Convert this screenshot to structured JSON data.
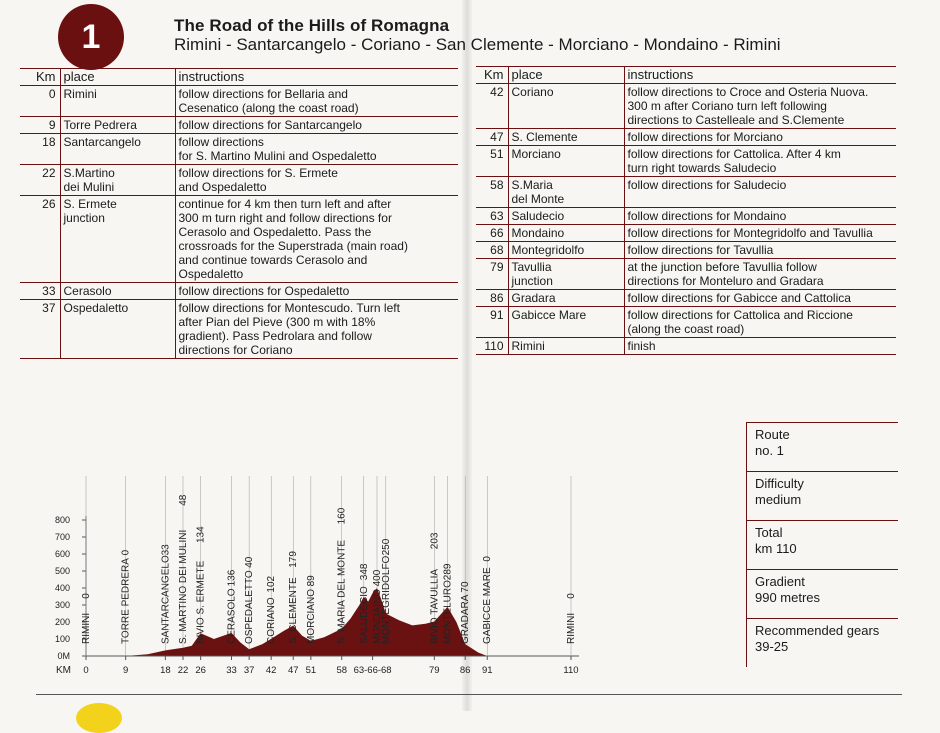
{
  "route_number": "1",
  "title": "The Road of the Hills of Romagna",
  "subtitle": "Rimini - Santarcangelo - Coriano - San Clemente - Morciano - Mondaino - Rimini",
  "headers": {
    "km": "Km",
    "place": "place",
    "instructions": "instructions"
  },
  "left_rows": [
    {
      "km": "0",
      "place": "Rimini",
      "instr": "follow directions for Bellaria and\nCesenatico (along the coast road)"
    },
    {
      "km": "9",
      "place": "Torre Pedrera",
      "instr": "follow directions for Santarcangelo"
    },
    {
      "km": "18",
      "place": "Santarcangelo",
      "instr": "follow directions\nfor S. Martino Mulini and Ospedaletto"
    },
    {
      "km": "22",
      "place": "S.Martino\ndei Mulini",
      "instr": "follow directions for S. Ermete\nand Ospedaletto"
    },
    {
      "km": "26",
      "place": "S. Ermete\njunction",
      "instr": "continue for 4 km then turn left and after\n300 m turn right and follow directions for\nCerasolo and Ospedaletto. Pass the\ncrossroads for the Superstrada (main road)\nand continue towards Cerasolo and\nOspedaletto"
    },
    {
      "km": "33",
      "place": "Cerasolo",
      "instr": "follow directions for Ospedaletto"
    },
    {
      "km": "37",
      "place": "Ospedaletto",
      "instr": "follow directions for Montescudo. Turn left\nafter Pian del Pieve (300 m with 18%\ngradient). Pass Pedrolara and follow\ndirections for Coriano"
    }
  ],
  "right_rows": [
    {
      "km": "42",
      "place": "Coriano",
      "instr": "follow directions to Croce and Osteria Nuova.\n300 m after Coriano turn left following\ndirections to Castelleale and S.Clemente"
    },
    {
      "km": "47",
      "place": "S. Clemente",
      "instr": "follow directions for Morciano"
    },
    {
      "km": "51",
      "place": "Morciano",
      "instr": "follow directions for Cattolica. After 4 km\nturn right towards Saludecio"
    },
    {
      "km": "58",
      "place": "S.Maria\ndel Monte",
      "instr": "follow directions for Saludecio"
    },
    {
      "km": "63",
      "place": "Saludecio",
      "instr": "follow directions for Mondaino"
    },
    {
      "km": "66",
      "place": "Mondaino",
      "instr": "follow directions for Montegridolfo and Tavullia"
    },
    {
      "km": "68",
      "place": "Montegridolfo",
      "instr": "follow directions for Tavullia"
    },
    {
      "km": "79",
      "place": "Tavullia\njunction",
      "instr": "at the junction before Tavullia follow\ndirections for Monteluro and Gradara"
    },
    {
      "km": "86",
      "place": "Gradara",
      "instr": "follow directions for Gabicce and Cattolica"
    },
    {
      "km": "91",
      "place": "Gabicce Mare",
      "instr": "follow directions for Cattolica and Riccione\n(along the coast road)"
    },
    {
      "km": "110",
      "place": "Rimini",
      "instr": "finish"
    }
  ],
  "info": [
    {
      "l1": "Route",
      "l2": "no. 1"
    },
    {
      "l1": "Difficulty",
      "l2": "medium"
    },
    {
      "l1": "Total",
      "l2": "km 110"
    },
    {
      "l1": "Gradient",
      "l2": "990 metres"
    },
    {
      "l1": "Recommended gears",
      "l2": "39-25"
    }
  ],
  "chart_data": {
    "type": "area",
    "xlabel": "KM",
    "y_ticks": [
      "800",
      "700",
      "600",
      "500",
      "400",
      "300",
      "200",
      "100",
      "0M"
    ],
    "y_range": [
      0,
      800
    ],
    "x_range": [
      0,
      110
    ],
    "x_ticks": [
      {
        "km": 0,
        "label": "0"
      },
      {
        "km": 9,
        "label": "9"
      },
      {
        "km": 18,
        "label": "18"
      },
      {
        "km": 22,
        "label": "22"
      },
      {
        "km": 26,
        "label": "26"
      },
      {
        "km": 33,
        "label": "33"
      },
      {
        "km": 37,
        "label": "37"
      },
      {
        "km": 42,
        "label": "42"
      },
      {
        "km": 47,
        "label": "47"
      },
      {
        "km": 51,
        "label": "51"
      },
      {
        "km": 58,
        "label": "58"
      },
      {
        "km": 65,
        "label": "63-66-68"
      },
      {
        "km": 79,
        "label": "79"
      },
      {
        "km": 86,
        "label": "86"
      },
      {
        "km": 91,
        "label": "91"
      },
      {
        "km": 110,
        "label": "110"
      }
    ],
    "places": [
      {
        "km": 0,
        "name": "RIMINI",
        "alt": "0"
      },
      {
        "km": 9,
        "name": "TORRE PEDRERA",
        "alt": "0"
      },
      {
        "km": 18,
        "name": "SANTARCANGELO",
        "alt": "33"
      },
      {
        "km": 22,
        "name": "S. MARTINO DEI MULINI",
        "alt": "48"
      },
      {
        "km": 26,
        "name": "BIVIO S. ERMETE",
        "alt": "134"
      },
      {
        "km": 33,
        "name": "CERASOLO",
        "alt": "136"
      },
      {
        "km": 37,
        "name": "OSPEDALETTO",
        "alt": "40"
      },
      {
        "km": 42,
        "name": "CORIANO",
        "alt": "102"
      },
      {
        "km": 47,
        "name": "S. CLEMENTE",
        "alt": "179"
      },
      {
        "km": 51,
        "name": "MORCIANO",
        "alt": "89"
      },
      {
        "km": 58,
        "name": "S. MARIA DEL MONTE",
        "alt": "160"
      },
      {
        "km": 63,
        "name": "SALUDECIO",
        "alt": "348"
      },
      {
        "km": 66,
        "name": "MONDAINO",
        "alt": "400"
      },
      {
        "km": 68,
        "name": "MONTEGRIDOLFO",
        "alt": "250"
      },
      {
        "km": 79,
        "name": "BIVIO TAVULLIA",
        "alt": "203"
      },
      {
        "km": 82,
        "name": "MONTELURO",
        "alt": "289"
      },
      {
        "km": 86,
        "name": "GRADARA",
        "alt": "70"
      },
      {
        "km": 91,
        "name": "GABICCE MARE",
        "alt": "0"
      },
      {
        "km": 110,
        "name": "RIMINI",
        "alt": "0"
      }
    ],
    "profile": [
      [
        0,
        0
      ],
      [
        9,
        0
      ],
      [
        14,
        10
      ],
      [
        18,
        33
      ],
      [
        22,
        48
      ],
      [
        24,
        60
      ],
      [
        26,
        134
      ],
      [
        29,
        100
      ],
      [
        33,
        136
      ],
      [
        35,
        80
      ],
      [
        37,
        40
      ],
      [
        40,
        70
      ],
      [
        42,
        102
      ],
      [
        45,
        150
      ],
      [
        47,
        179
      ],
      [
        49,
        120
      ],
      [
        51,
        89
      ],
      [
        54,
        110
      ],
      [
        58,
        160
      ],
      [
        60,
        220
      ],
      [
        62,
        300
      ],
      [
        63,
        348
      ],
      [
        64,
        320
      ],
      [
        65,
        370
      ],
      [
        66,
        400
      ],
      [
        67,
        330
      ],
      [
        68,
        250
      ],
      [
        71,
        210
      ],
      [
        74,
        180
      ],
      [
        77,
        190
      ],
      [
        79,
        203
      ],
      [
        81,
        260
      ],
      [
        82,
        289
      ],
      [
        84,
        200
      ],
      [
        86,
        70
      ],
      [
        89,
        20
      ],
      [
        91,
        0
      ],
      [
        110,
        0
      ]
    ],
    "colors": {
      "fill": "#6a1212",
      "axis": "#555555"
    }
  }
}
